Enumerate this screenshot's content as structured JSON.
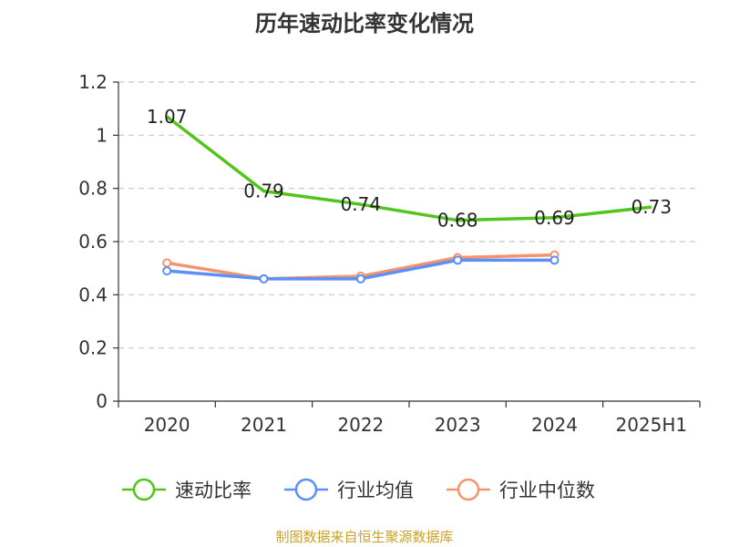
{
  "chart_data": {
    "type": "line",
    "title": "历年速动比率变化情况",
    "categories": [
      "2020",
      "2021",
      "2022",
      "2023",
      "2024",
      "2025H1"
    ],
    "ylim": [
      0,
      1.2
    ],
    "yticks": [
      "0",
      "0.2",
      "0.4",
      "0.6",
      "0.8",
      "1",
      "1.2"
    ],
    "grid": true,
    "legend_position": "bottom",
    "series": [
      {
        "name": "速动比率",
        "color": "#52c41a",
        "values": [
          1.07,
          0.79,
          0.74,
          0.68,
          0.69,
          0.73
        ],
        "labels": [
          "1.07",
          "0.79",
          "0.74",
          "0.68",
          "0.69",
          "0.73"
        ]
      },
      {
        "name": "行业均值",
        "color": "#5b8ff9",
        "values": [
          0.49,
          0.46,
          0.46,
          0.53,
          0.53,
          null
        ]
      },
      {
        "name": "行业中位数",
        "color": "#f5946b",
        "values": [
          0.52,
          0.46,
          0.47,
          0.54,
          0.55,
          null
        ]
      }
    ]
  },
  "source": "制图数据来自恒生聚源数据库"
}
